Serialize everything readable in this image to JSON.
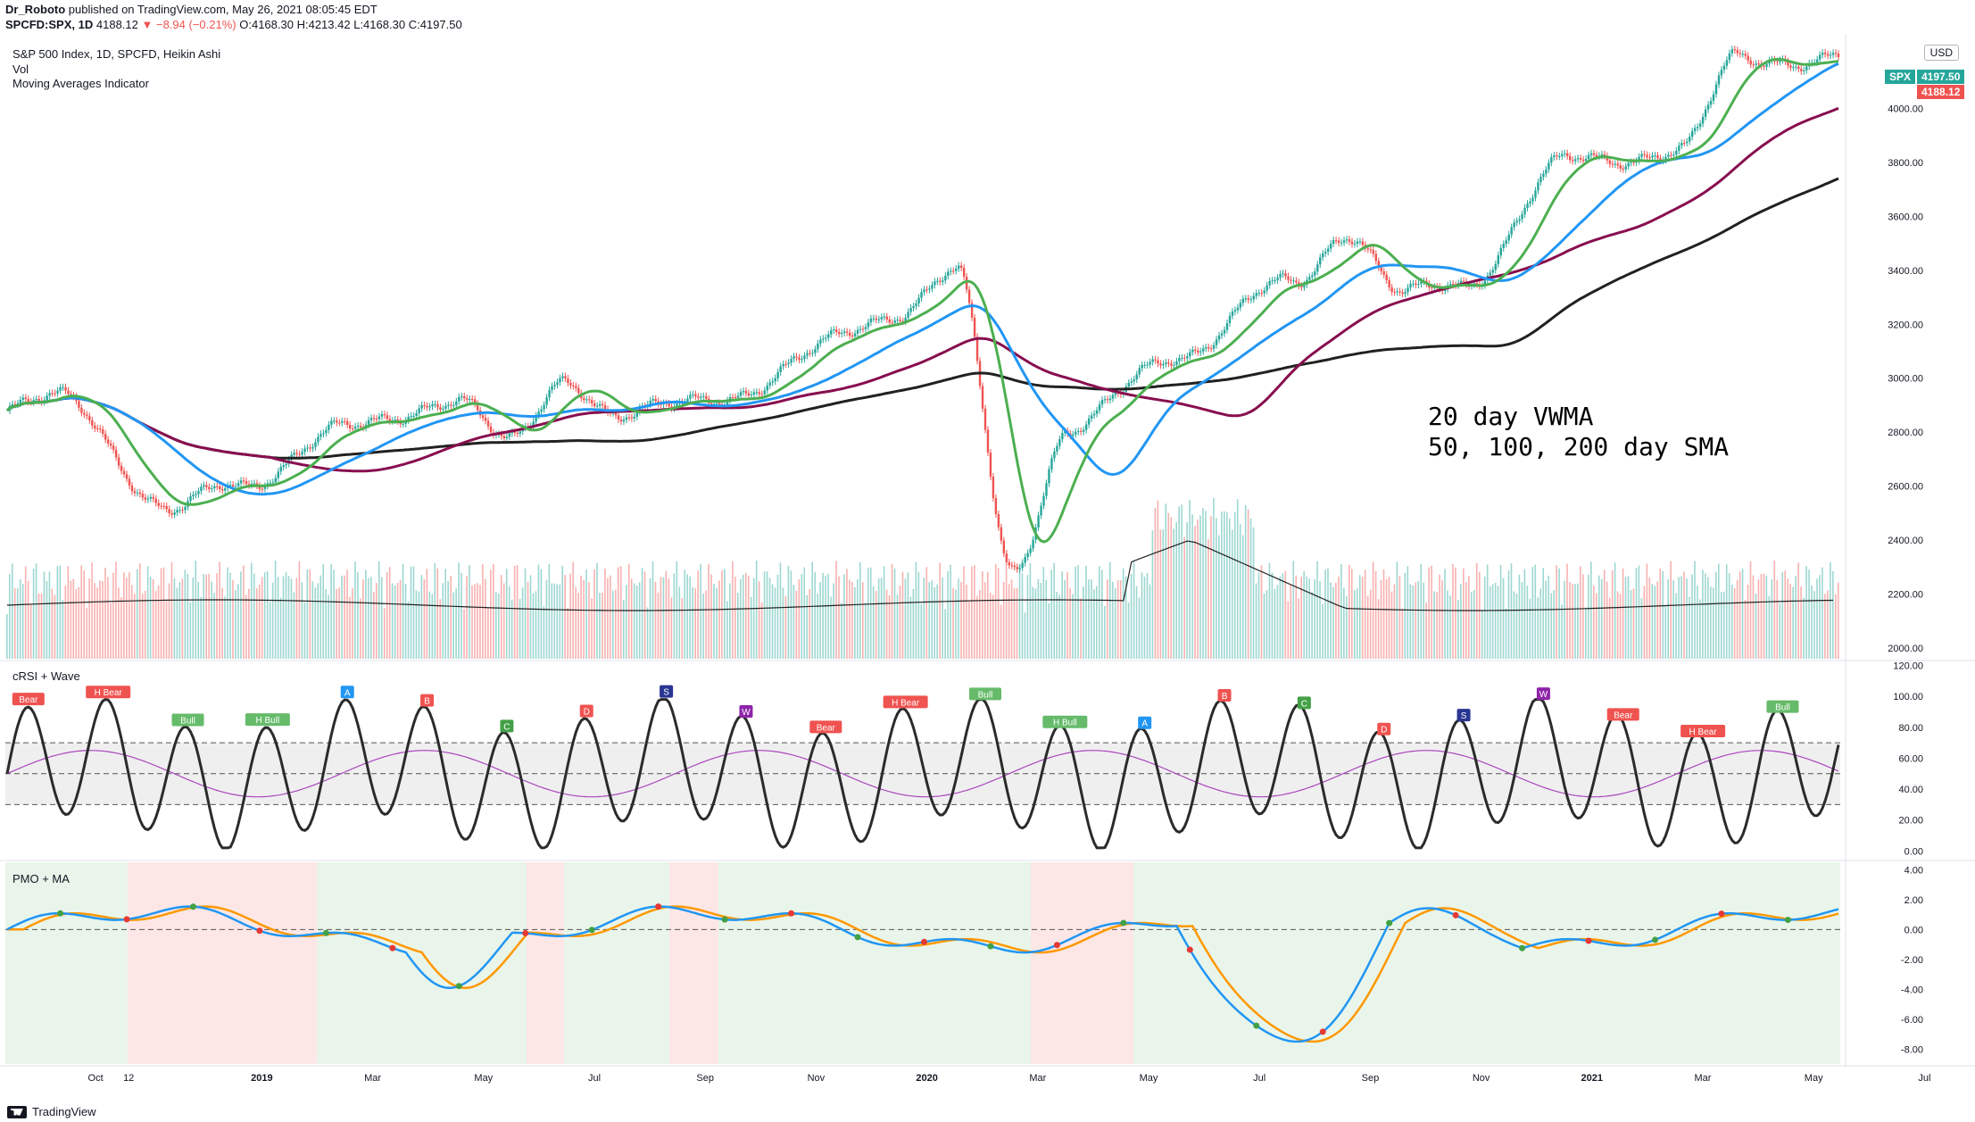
{
  "header": {
    "author": "Dr_Roboto",
    "published": "published on TradingView.com, May 26, 2021 08:05:45 EDT"
  },
  "symbol_line": {
    "symbol": "SPCFD:SPX, 1D",
    "last": "4188.12",
    "change": "−8.94 (−0.21%)",
    "open": "O:4168.30",
    "high": "H:4213.42",
    "low": "L:4168.30",
    "close": "C:4197.50"
  },
  "legends": {
    "title": "S&P 500 Index, 1D, SPCFD, Heikin Ashi",
    "vol": "Vol",
    "ma": "Moving Averages Indicator",
    "crsi": "cRSI + Wave",
    "pmo": "PMO + MA"
  },
  "currency_button": "USD",
  "price_tags": {
    "symbol_tag": "SPX",
    "close_tag": "4197.50",
    "last_tag": "4188.12"
  },
  "annotation": {
    "line1": "20 day VWMA",
    "line2": "50, 100, 200 day SMA"
  },
  "footer": {
    "brand": "TradingView"
  },
  "colors": {
    "up": "#26a69a",
    "down": "#ef5350",
    "vwma": "#4caf50",
    "sma50": "#2196f3",
    "sma100": "#880e4f",
    "sma200": "#212121",
    "crsi_line": "#2b2b2b",
    "wave": "#ab47bc",
    "pmo": "#2196f3",
    "pmo_ma": "#ff9800"
  },
  "chart_data": [
    {
      "type": "candlestick",
      "title": "S&P 500 Index, 1D, SPCFD, Heikin Ashi",
      "x_tick_labels": [
        "Oct",
        "12",
        "2019",
        "Mar",
        "May",
        "Jul",
        "Sep",
        "Nov",
        "2020",
        "Mar",
        "May",
        "Jul",
        "Sep",
        "Nov",
        "2021",
        "Mar",
        "May",
        "Jul"
      ],
      "y_tick_labels": [
        "2000.00",
        "2200.00",
        "2400.00",
        "2600.00",
        "2800.00",
        "3000.00",
        "3200.00",
        "3400.00",
        "3600.00",
        "3800.00",
        "4000.00"
      ],
      "ylim": [
        1960,
        4270
      ],
      "price_anchors": {
        "x": [
          "2018-09",
          "2018-10",
          "2018-12",
          "2019-01",
          "2019-03",
          "2019-05",
          "2019-06",
          "2019-07",
          "2019-08",
          "2019-10",
          "2020-01",
          "2020-02",
          "2020-03",
          "2020-04",
          "2020-06",
          "2020-08",
          "2020-09",
          "2020-10",
          "2020-11",
          "2021-01",
          "2021-03",
          "2021-04",
          "2021-05"
        ],
        "y": [
          2880,
          2920,
          2500,
          2600,
          2800,
          2930,
          2750,
          3010,
          2850,
          2950,
          3250,
          3380,
          2300,
          2800,
          3100,
          3350,
          3550,
          3300,
          3350,
          3800,
          3850,
          4180,
          4190
        ]
      },
      "series": [
        {
          "name": "20 day VWMA",
          "color": "#4caf50"
        },
        {
          "name": "50 day SMA",
          "color": "#2196f3"
        },
        {
          "name": "100 day SMA",
          "color": "#880e4f"
        },
        {
          "name": "200 day SMA",
          "color": "#212121"
        }
      ]
    },
    {
      "type": "line",
      "title": "cRSI + Wave",
      "y_tick_labels": [
        "120.00",
        "100.00",
        "80.00",
        "60.00",
        "40.00",
        "20.00",
        "0.00"
      ],
      "ylim": [
        -5,
        122
      ],
      "levels": [
        70,
        50,
        30
      ],
      "signal_labels": [
        "Bear",
        "H Bear",
        "Bull",
        "H Bull",
        "A",
        "B",
        "C",
        "D",
        "S",
        "W"
      ]
    },
    {
      "type": "line",
      "title": "PMO + MA",
      "y_tick_labels": [
        "4.00",
        "2.00",
        "0.00",
        "-2.00",
        "-4.00",
        "-6.00",
        "-8.00"
      ],
      "ylim": [
        -9,
        4.5
      ],
      "series": [
        {
          "name": "PMO"
        },
        {
          "name": "MA"
        }
      ]
    }
  ]
}
